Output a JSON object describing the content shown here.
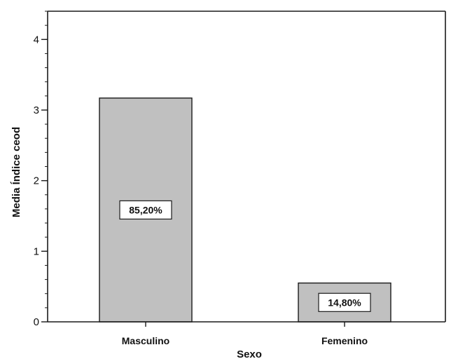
{
  "chart_data": {
    "type": "bar",
    "categories": [
      "Masculino",
      "Femenino"
    ],
    "values": [
      3.17,
      0.55
    ],
    "data_labels": [
      "85,20%",
      "14,80%"
    ],
    "xlabel": "Sexo",
    "ylabel": "Media Índice ceod",
    "ylim": [
      0,
      4.4
    ],
    "yticks": [
      0,
      1,
      2,
      3,
      4
    ],
    "grid": false,
    "colors": {
      "bar_fill": "#c0c0c0",
      "bar_stroke": "#1a1a1a"
    }
  }
}
